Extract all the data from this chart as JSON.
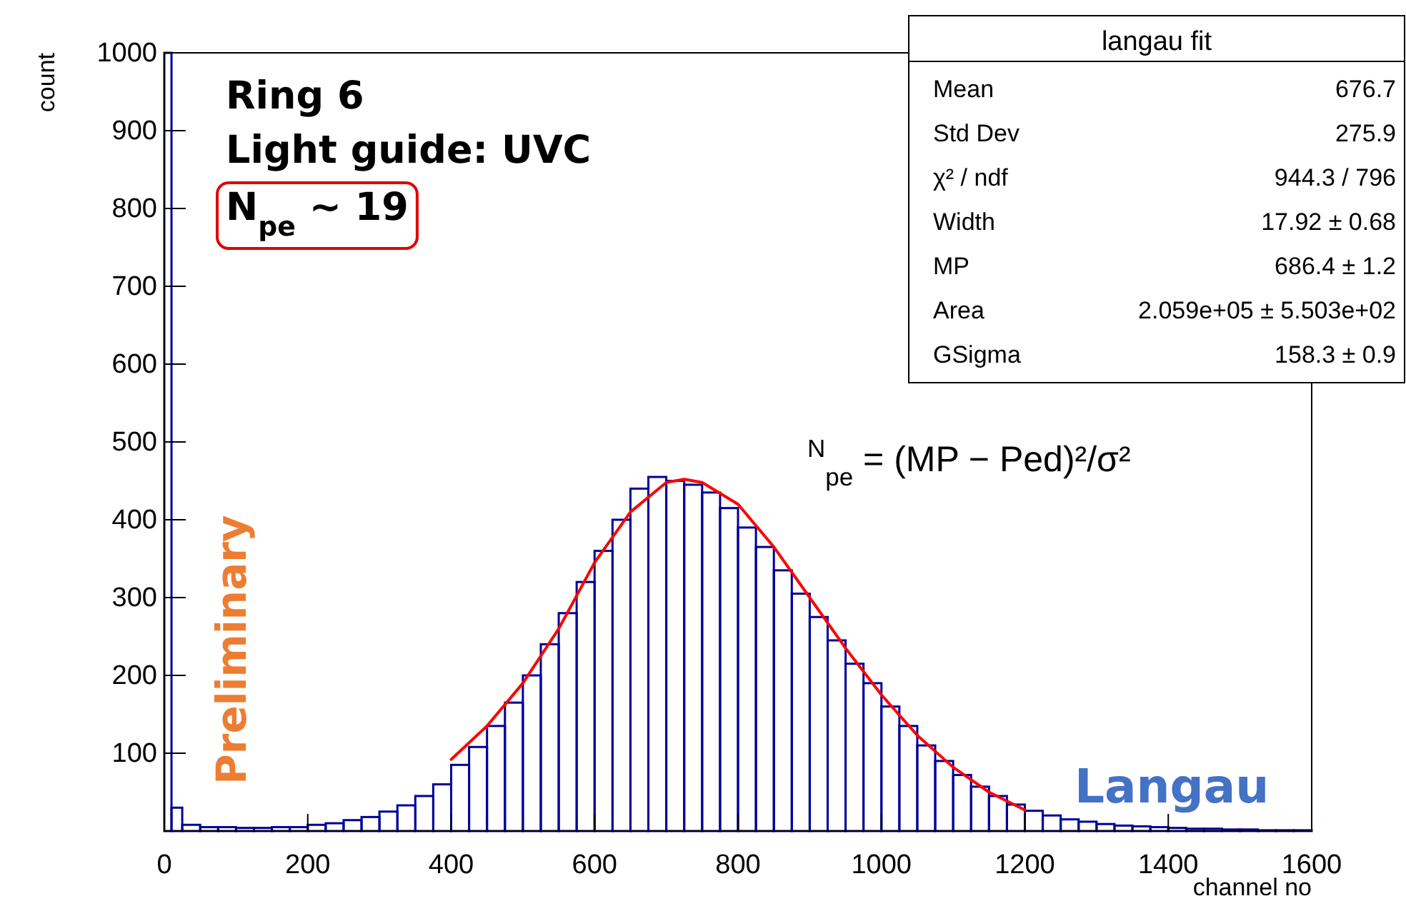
{
  "chart_data": {
    "type": "histogram",
    "xlabel": "channel no",
    "ylabel": "count",
    "xlim": [
      0,
      1600
    ],
    "xticks": [
      0,
      200,
      400,
      600,
      800,
      1000,
      1200,
      1400,
      1600
    ],
    "ylim": [
      0,
      1000
    ],
    "yticks": [
      100,
      200,
      300,
      400,
      500,
      600,
      700,
      800,
      900,
      1000
    ],
    "grid": false,
    "bins": [
      0,
      10,
      25,
      50,
      75,
      100,
      125,
      150,
      175,
      200,
      225,
      250,
      275,
      300,
      325,
      350,
      375,
      400,
      425,
      450,
      475,
      500,
      525,
      550,
      575,
      600,
      625,
      650,
      675,
      700,
      725,
      750,
      775,
      800,
      825,
      850,
      875,
      900,
      925,
      950,
      975,
      1000,
      1025,
      1050,
      1075,
      1100,
      1125,
      1150,
      1175,
      1200,
      1225,
      1250,
      1275,
      1300,
      1325,
      1350,
      1375,
      1400,
      1425,
      1450,
      1475,
      1500,
      1525,
      1550,
      1575,
      1600
    ],
    "series": [
      {
        "color": "#000099",
        "values": [
          1000,
          30,
          8,
          5,
          5,
          4,
          4,
          5,
          5,
          8,
          10,
          14,
          18,
          25,
          33,
          45,
          60,
          85,
          108,
          135,
          165,
          200,
          240,
          280,
          320,
          360,
          400,
          440,
          455,
          450,
          445,
          435,
          415,
          390,
          365,
          335,
          305,
          275,
          245,
          215,
          190,
          160,
          135,
          110,
          90,
          72,
          57,
          45,
          34,
          26,
          20,
          15,
          12,
          9,
          7,
          6,
          5,
          4,
          3,
          3,
          2,
          2,
          1,
          1,
          1
        ]
      },
      {
        "type": "line",
        "color": "#ff0000",
        "x": [
          400,
          450,
          500,
          550,
          600,
          650,
          700,
          725,
          750,
          800,
          850,
          900,
          950,
          1000,
          1050,
          1100,
          1150,
          1200
        ],
        "values": [
          92,
          135,
          190,
          260,
          345,
          410,
          448,
          452,
          448,
          420,
          365,
          300,
          235,
          175,
          123,
          82,
          50,
          27
        ]
      }
    ],
    "annotations": [
      "Ring 6",
      "Light guide: UVC",
      "N$_{pe}$ ~ 19",
      "$^{N}$$_{pe}$ = (MP − Ped)²/σ²",
      "Preliminary",
      "Langau",
      "langau fit",
      "Mean",
      "676.7",
      "Std Dev",
      "275.9",
      "χ² / ndf",
      "944.3 / 796",
      "Width",
      "17.92 ± 0.68",
      "MP",
      "686.4 ± 1.2",
      "Area",
      "2.059e+05 ± 5.503e+02",
      "GSigma",
      "158.3 ± 0.9"
    ]
  }
}
